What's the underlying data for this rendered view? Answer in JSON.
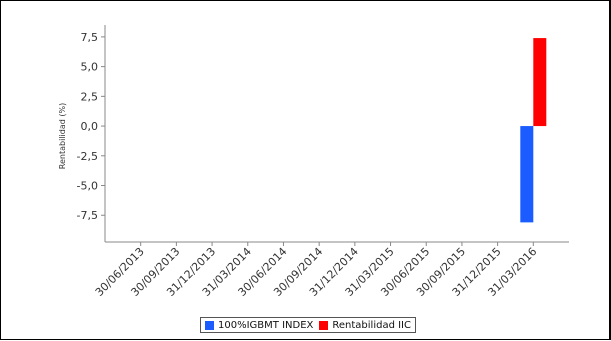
{
  "chart_data": {
    "type": "bar",
    "title": "",
    "xlabel": "",
    "ylabel": "Rentabilidad (%)",
    "categories": [
      "30/06/2013",
      "30/09/2013",
      "31/12/2013",
      "31/03/2014",
      "30/06/2014",
      "30/09/2014",
      "31/12/2014",
      "31/03/2015",
      "30/06/2015",
      "30/09/2015",
      "31/12/2015",
      "31/03/2016"
    ],
    "y_ticks": [
      "7,5",
      "5,0",
      "2,5",
      "0,0",
      "-2,5",
      "-5,0",
      "-7,5"
    ],
    "ylim": [
      -9.75,
      8.5
    ],
    "grid": false,
    "legend_position": "bottom",
    "series": [
      {
        "name": "100%IGBMT INDEX",
        "color": "#1a5cff",
        "values": [
          null,
          null,
          null,
          null,
          null,
          null,
          null,
          null,
          null,
          null,
          null,
          -8.1
        ]
      },
      {
        "name": "Rentabilidad IIC",
        "color": "#ff0000",
        "values": [
          null,
          null,
          null,
          null,
          null,
          null,
          null,
          null,
          null,
          null,
          null,
          7.4
        ]
      }
    ]
  }
}
